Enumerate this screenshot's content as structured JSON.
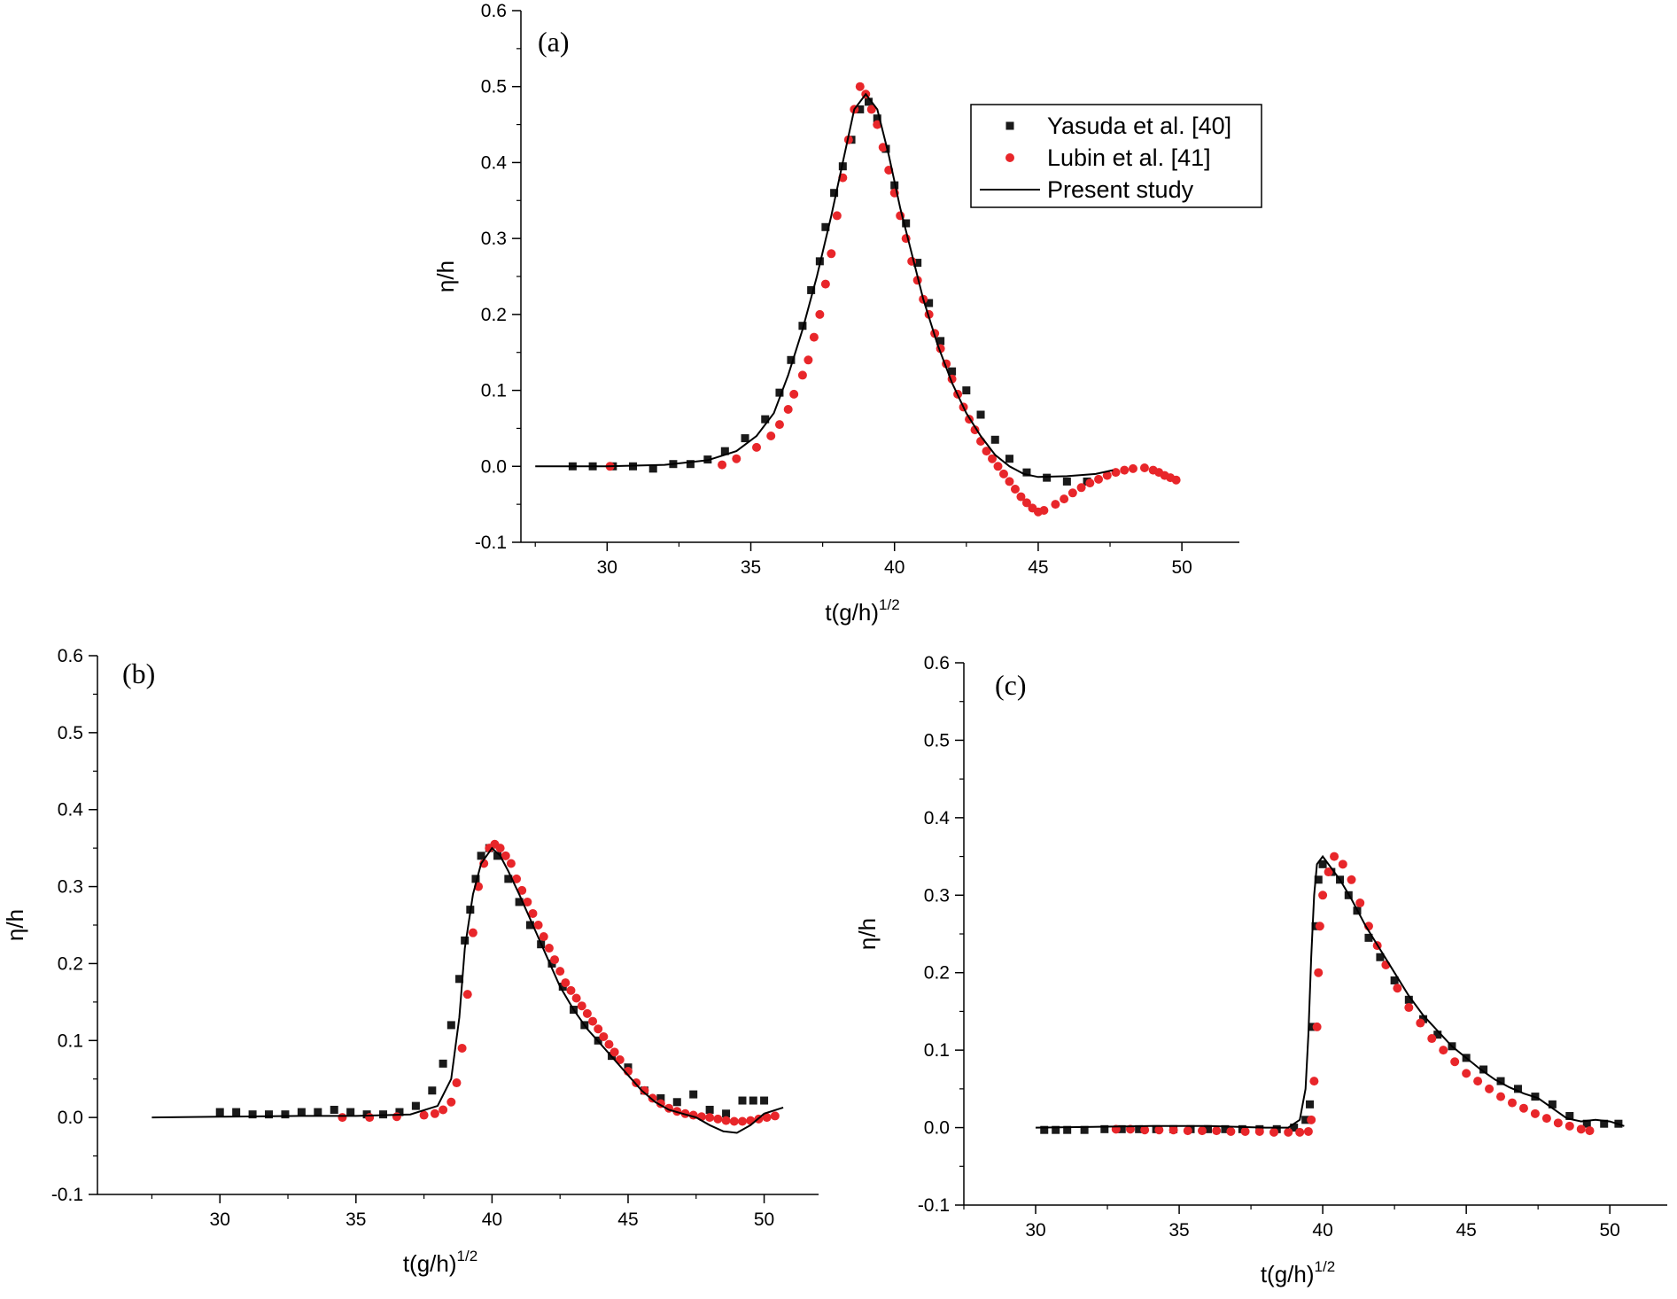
{
  "chart_data": [
    {
      "type": "scatter",
      "panel_label": "(a)",
      "xlabel": "t(g/h)",
      "xlabel_sup": "1/2",
      "ylabel": "η/h",
      "xlim": [
        27,
        52
      ],
      "ylim": [
        -0.1,
        0.6
      ],
      "xticks": [
        "30",
        "35",
        "40",
        "45",
        "50"
      ],
      "yticks": [
        "-0.1",
        "0.0",
        "0.1",
        "0.2",
        "0.3",
        "0.4",
        "0.5",
        "0.6"
      ],
      "legend": {
        "position": "top-right",
        "entries": [
          "Yasuda et al. [40]",
          "Lubin et al. [41]",
          "Present study"
        ]
      },
      "series": [
        {
          "name": "Yasuda et al. [40]",
          "marker": "square",
          "color": "#1a1a1a",
          "x": [
            28.8,
            29.5,
            30.2,
            30.9,
            31.6,
            32.3,
            32.9,
            33.5,
            34.1,
            34.8,
            35.5,
            36.0,
            36.4,
            36.8,
            37.1,
            37.4,
            37.6,
            37.9,
            38.2,
            38.5,
            38.8,
            39.1,
            39.4,
            39.7,
            40.0,
            40.4,
            40.8,
            41.2,
            41.6,
            42.0,
            42.5,
            43.0,
            43.5,
            44.0,
            44.6,
            45.3,
            46.0,
            46.7
          ],
          "y": [
            0.0,
            0.0,
            0.0,
            0.0,
            -0.003,
            0.003,
            0.003,
            0.009,
            0.02,
            0.037,
            0.062,
            0.097,
            0.14,
            0.185,
            0.232,
            0.27,
            0.315,
            0.36,
            0.395,
            0.43,
            0.47,
            0.48,
            0.458,
            0.418,
            0.37,
            0.32,
            0.268,
            0.215,
            0.165,
            0.125,
            0.1,
            0.068,
            0.035,
            0.01,
            -0.008,
            -0.015,
            -0.02,
            -0.02
          ]
        },
        {
          "name": "Lubin et al. [41]",
          "marker": "circle",
          "color": "#e8262a",
          "x": [
            30.1,
            34.0,
            34.5,
            35.2,
            35.7,
            36.0,
            36.3,
            36.5,
            36.8,
            37.0,
            37.2,
            37.4,
            37.6,
            37.8,
            38.0,
            38.2,
            38.4,
            38.6,
            38.8,
            39.0,
            39.2,
            39.4,
            39.6,
            39.8,
            40.0,
            40.2,
            40.4,
            40.6,
            40.8,
            41.0,
            41.2,
            41.4,
            41.6,
            41.8,
            42.0,
            42.2,
            42.4,
            42.6,
            42.8,
            43.0,
            43.2,
            43.4,
            43.6,
            43.8,
            44.0,
            44.2,
            44.4,
            44.6,
            44.8,
            45.0,
            45.2,
            45.6,
            45.9,
            46.2,
            46.5,
            46.8,
            47.1,
            47.4,
            47.7,
            48.0,
            48.3,
            48.7,
            49.0,
            49.2,
            49.4,
            49.6,
            49.8
          ],
          "y": [
            0.0,
            0.002,
            0.01,
            0.025,
            0.04,
            0.055,
            0.075,
            0.095,
            0.12,
            0.14,
            0.17,
            0.2,
            0.24,
            0.28,
            0.33,
            0.38,
            0.43,
            0.47,
            0.5,
            0.49,
            0.47,
            0.45,
            0.42,
            0.39,
            0.36,
            0.33,
            0.3,
            0.27,
            0.245,
            0.22,
            0.2,
            0.175,
            0.155,
            0.135,
            0.115,
            0.095,
            0.078,
            0.062,
            0.048,
            0.033,
            0.02,
            0.01,
            0.0,
            -0.01,
            -0.02,
            -0.03,
            -0.04,
            -0.048,
            -0.055,
            -0.06,
            -0.058,
            -0.05,
            -0.043,
            -0.035,
            -0.028,
            -0.022,
            -0.017,
            -0.012,
            -0.008,
            -0.005,
            -0.003,
            -0.002,
            -0.005,
            -0.008,
            -0.012,
            -0.015,
            -0.018
          ]
        },
        {
          "name": "Present study",
          "marker": "line",
          "color": "#000000",
          "x": [
            27.5,
            30.0,
            32.0,
            33.5,
            34.5,
            35.2,
            35.8,
            36.3,
            36.8,
            37.3,
            37.8,
            38.2,
            38.6,
            39.0,
            39.4,
            39.8,
            40.2,
            40.6,
            41.0,
            41.5,
            42.0,
            42.5,
            43.0,
            43.5,
            44.0,
            44.5,
            45.0,
            46.0,
            47.0,
            47.6
          ],
          "y": [
            0.0,
            0.0,
            0.002,
            0.008,
            0.02,
            0.04,
            0.07,
            0.12,
            0.18,
            0.25,
            0.33,
            0.4,
            0.47,
            0.49,
            0.47,
            0.41,
            0.34,
            0.28,
            0.22,
            0.16,
            0.11,
            0.07,
            0.04,
            0.015,
            0.0,
            -0.01,
            -0.014,
            -0.013,
            -0.01,
            -0.005
          ]
        }
      ]
    },
    {
      "type": "scatter",
      "panel_label": "(b)",
      "xlabel": "t(g/h)",
      "xlabel_sup": "1/2",
      "ylabel": "η/h",
      "xlim": [
        25.5,
        52
      ],
      "ylim": [
        -0.1,
        0.6
      ],
      "xticks": [
        "30",
        "35",
        "40",
        "45",
        "50"
      ],
      "yticks": [
        "-0.1",
        "0.0",
        "0.1",
        "0.2",
        "0.3",
        "0.4",
        "0.5",
        "0.6"
      ],
      "series": [
        {
          "name": "Yasuda et al. [40]",
          "marker": "square",
          "color": "#1a1a1a",
          "x": [
            30.0,
            30.6,
            31.2,
            31.8,
            32.4,
            33.0,
            33.6,
            34.2,
            34.8,
            35.4,
            36.0,
            36.6,
            37.2,
            37.8,
            38.2,
            38.5,
            38.8,
            39.0,
            39.2,
            39.4,
            39.6,
            39.9,
            40.2,
            40.6,
            41.0,
            41.4,
            41.8,
            42.2,
            42.6,
            43.0,
            43.4,
            43.9,
            44.4,
            45.0,
            45.6,
            46.2,
            46.8,
            47.4,
            48.0,
            48.6,
            49.2,
            49.6,
            50.0
          ],
          "y": [
            0.007,
            0.007,
            0.004,
            0.004,
            0.004,
            0.007,
            0.007,
            0.01,
            0.007,
            0.004,
            0.004,
            0.007,
            0.015,
            0.035,
            0.07,
            0.12,
            0.18,
            0.23,
            0.27,
            0.31,
            0.34,
            0.35,
            0.34,
            0.31,
            0.28,
            0.25,
            0.225,
            0.2,
            0.17,
            0.14,
            0.12,
            0.1,
            0.08,
            0.065,
            0.035,
            0.025,
            0.02,
            0.03,
            0.01,
            0.005,
            0.022,
            0.022,
            0.022
          ]
        },
        {
          "name": "Lubin et al. [41]",
          "marker": "circle",
          "color": "#e8262a",
          "x": [
            34.5,
            35.5,
            36.5,
            37.5,
            37.9,
            38.2,
            38.5,
            38.7,
            38.9,
            39.1,
            39.3,
            39.5,
            39.7,
            39.9,
            40.1,
            40.3,
            40.5,
            40.7,
            40.9,
            41.1,
            41.3,
            41.5,
            41.7,
            41.9,
            42.1,
            42.3,
            42.5,
            42.7,
            42.9,
            43.1,
            43.3,
            43.5,
            43.7,
            43.9,
            44.1,
            44.3,
            44.5,
            44.7,
            45.0,
            45.3,
            45.6,
            45.9,
            46.2,
            46.5,
            46.8,
            47.1,
            47.4,
            47.7,
            48.0,
            48.3,
            48.6,
            48.9,
            49.2,
            49.5,
            49.8,
            50.1,
            50.4
          ],
          "y": [
            0.0,
            0.0,
            0.001,
            0.003,
            0.005,
            0.01,
            0.02,
            0.045,
            0.09,
            0.16,
            0.24,
            0.3,
            0.33,
            0.35,
            0.355,
            0.35,
            0.34,
            0.33,
            0.31,
            0.295,
            0.28,
            0.265,
            0.25,
            0.235,
            0.22,
            0.205,
            0.19,
            0.175,
            0.165,
            0.155,
            0.145,
            0.135,
            0.125,
            0.115,
            0.105,
            0.095,
            0.085,
            0.075,
            0.06,
            0.045,
            0.035,
            0.025,
            0.018,
            0.012,
            0.008,
            0.005,
            0.003,
            0.001,
            0.0,
            -0.002,
            -0.004,
            -0.005,
            -0.005,
            -0.004,
            -0.002,
            0.0,
            0.002
          ]
        },
        {
          "name": "Present study",
          "marker": "line",
          "color": "#000000",
          "x": [
            27.5,
            30.0,
            33.0,
            35.0,
            37.0,
            38.0,
            38.5,
            38.8,
            39.0,
            39.3,
            39.6,
            40.0,
            40.3,
            40.6,
            41.0,
            41.5,
            42.0,
            42.5,
            43.0,
            43.5,
            44.0,
            44.5,
            45.0,
            45.5,
            46.0,
            46.5,
            47.0,
            47.5,
            48.0,
            48.5,
            49.0,
            49.5,
            50.0,
            50.7
          ],
          "y": [
            0.0,
            0.001,
            0.002,
            0.002,
            0.004,
            0.015,
            0.05,
            0.13,
            0.22,
            0.29,
            0.33,
            0.35,
            0.34,
            0.32,
            0.29,
            0.25,
            0.21,
            0.17,
            0.14,
            0.115,
            0.095,
            0.075,
            0.055,
            0.035,
            0.02,
            0.01,
            0.005,
            0.0,
            -0.01,
            -0.018,
            -0.02,
            -0.01,
            0.005,
            0.013
          ]
        }
      ]
    },
    {
      "type": "scatter",
      "panel_label": "(c)",
      "xlabel": "t(g/h)",
      "xlabel_sup": "1/2",
      "ylabel": "η/h",
      "xlim": [
        27.5,
        52
      ],
      "ylim": [
        -0.1,
        0.6
      ],
      "xticks": [
        "30",
        "35",
        "40",
        "45",
        "50"
      ],
      "yticks": [
        "-0.1",
        "0.0",
        "0.1",
        "0.2",
        "0.3",
        "0.4",
        "0.5",
        "0.6"
      ],
      "series": [
        {
          "name": "Yasuda et al. [40]",
          "marker": "square",
          "color": "#1a1a1a",
          "x": [
            30.3,
            30.7,
            31.1,
            31.7,
            32.4,
            33.0,
            33.6,
            34.2,
            34.8,
            35.4,
            36.0,
            36.6,
            37.2,
            37.8,
            38.4,
            39.0,
            39.4,
            39.55,
            39.65,
            39.75,
            39.85,
            40.0,
            40.3,
            40.6,
            40.9,
            41.2,
            41.6,
            42.0,
            42.5,
            43.0,
            43.5,
            44.0,
            44.5,
            45.0,
            45.6,
            46.2,
            46.8,
            47.4,
            48.0,
            48.6,
            49.2,
            49.8,
            50.3
          ],
          "y": [
            -0.003,
            -0.003,
            -0.003,
            -0.003,
            -0.002,
            -0.002,
            -0.002,
            -0.002,
            -0.002,
            -0.002,
            -0.002,
            -0.002,
            -0.002,
            -0.002,
            -0.002,
            0.0,
            0.01,
            0.03,
            0.13,
            0.26,
            0.32,
            0.34,
            0.33,
            0.32,
            0.3,
            0.28,
            0.245,
            0.22,
            0.19,
            0.165,
            0.14,
            0.12,
            0.105,
            0.09,
            0.075,
            0.06,
            0.05,
            0.04,
            0.03,
            0.015,
            0.005,
            0.005,
            0.005
          ]
        },
        {
          "name": "Lubin et al. [41]",
          "marker": "circle",
          "color": "#e8262a",
          "x": [
            32.8,
            33.3,
            33.8,
            34.3,
            34.8,
            35.3,
            35.8,
            36.3,
            36.8,
            37.3,
            37.8,
            38.3,
            38.8,
            39.2,
            39.5,
            39.6,
            39.7,
            39.8,
            39.85,
            39.9,
            40.0,
            40.2,
            40.4,
            40.7,
            41.0,
            41.3,
            41.6,
            41.9,
            42.2,
            42.6,
            43.0,
            43.4,
            43.8,
            44.2,
            44.6,
            45.0,
            45.4,
            45.8,
            46.2,
            46.6,
            47.0,
            47.4,
            47.8,
            48.2,
            48.6,
            49.0,
            49.3
          ],
          "y": [
            -0.002,
            -0.002,
            -0.003,
            -0.003,
            -0.003,
            -0.004,
            -0.004,
            -0.004,
            -0.005,
            -0.005,
            -0.005,
            -0.006,
            -0.006,
            -0.006,
            -0.005,
            0.01,
            0.06,
            0.13,
            0.2,
            0.26,
            0.3,
            0.33,
            0.35,
            0.34,
            0.32,
            0.29,
            0.26,
            0.235,
            0.21,
            0.18,
            0.155,
            0.135,
            0.115,
            0.1,
            0.085,
            0.07,
            0.06,
            0.05,
            0.04,
            0.032,
            0.025,
            0.018,
            0.012,
            0.006,
            0.002,
            -0.002,
            -0.004
          ]
        },
        {
          "name": "Present study",
          "marker": "line",
          "color": "#000000",
          "x": [
            30.0,
            32.0,
            34.0,
            36.0,
            38.0,
            38.8,
            39.2,
            39.4,
            39.5,
            39.6,
            39.7,
            39.8,
            40.0,
            40.3,
            40.6,
            41.0,
            41.5,
            42.0,
            42.5,
            43.0,
            43.5,
            44.0,
            44.5,
            45.0,
            45.5,
            46.0,
            46.5,
            47.0,
            47.5,
            48.0,
            48.5,
            49.0,
            49.5,
            50.0,
            50.5
          ],
          "y": [
            0.0,
            0.001,
            0.002,
            0.002,
            0.0,
            0.0,
            0.01,
            0.05,
            0.12,
            0.22,
            0.3,
            0.34,
            0.35,
            0.335,
            0.32,
            0.295,
            0.26,
            0.23,
            0.2,
            0.17,
            0.145,
            0.125,
            0.105,
            0.09,
            0.075,
            0.062,
            0.052,
            0.044,
            0.038,
            0.025,
            0.012,
            0.008,
            0.01,
            0.008,
            0.002
          ]
        }
      ]
    }
  ]
}
